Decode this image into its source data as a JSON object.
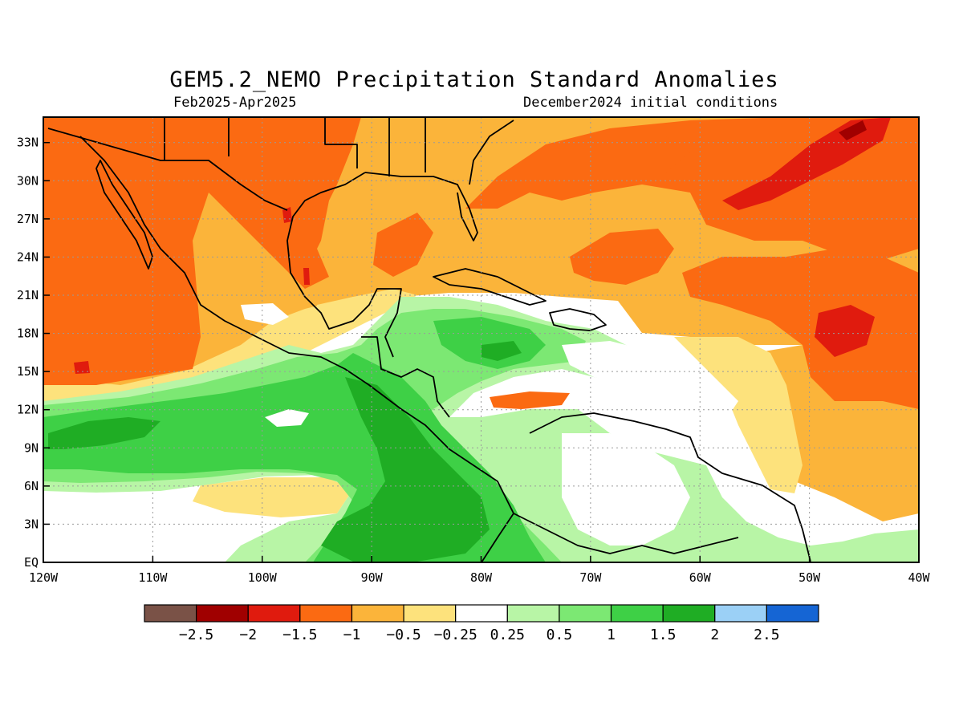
{
  "title": "GEM5.2_NEMO Precipitation Standard Anomalies",
  "period": "Feb2025-Apr2025",
  "init": "December2024 initial conditions",
  "colors": {
    "m25": "#7a5247",
    "m2": "#a00000",
    "m15": "#e01b0e",
    "m1": "#fb6a12",
    "m05": "#fbb43a",
    "m025": "#fde27c",
    "zero": "#ffffff",
    "p025": "#b8f5a6",
    "p05": "#7ce873",
    "p1": "#3ed046",
    "p15": "#1fad24",
    "p2": "#9bd0f6",
    "p25": "#1565d4",
    "land": "#000000"
  },
  "chart_data": {
    "type": "heatmap",
    "x_ticks": [
      "120W",
      "110W",
      "100W",
      "90W",
      "80W",
      "70W",
      "60W",
      "50W",
      "40W"
    ],
    "y_ticks": [
      "EQ",
      "3N",
      "6N",
      "9N",
      "12N",
      "15N",
      "18N",
      "21N",
      "24N",
      "27N",
      "30N",
      "33N"
    ],
    "xlim": [
      -120,
      -40
    ],
    "ylim": [
      0,
      35
    ],
    "grid": true,
    "colorbar": {
      "labels": [
        "-2.5",
        "-2",
        "-1.5",
        "-1",
        "-0.5",
        "-0.25",
        "0.25",
        "0.5",
        "1",
        "1.5",
        "2",
        "2.5"
      ],
      "bins": [
        "m25",
        "m2",
        "m15",
        "m1",
        "m05",
        "m025",
        "zero",
        "p025",
        "p05",
        "p1",
        "p15",
        "p2",
        "p25"
      ]
    }
  }
}
